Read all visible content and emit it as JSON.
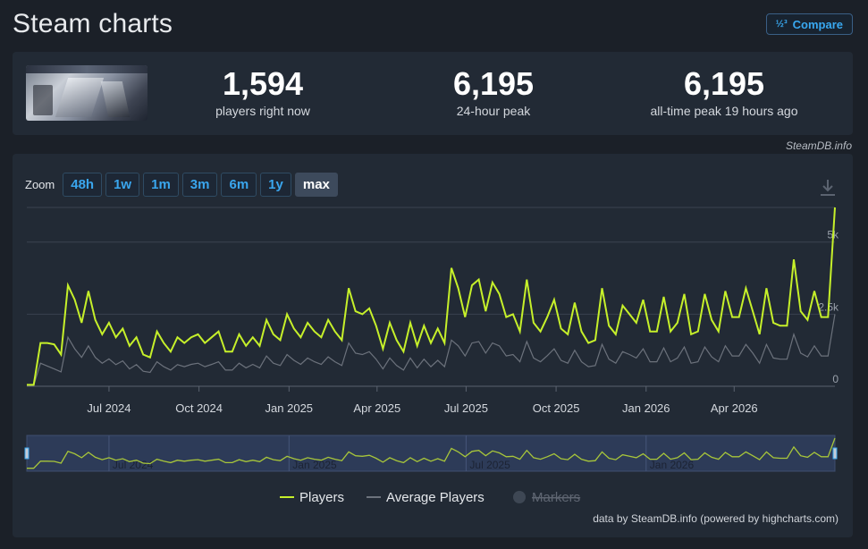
{
  "page": {
    "title": "Steam charts"
  },
  "compare": {
    "label": "Compare",
    "icon": "compare-icon",
    "icon_glyph": "½³"
  },
  "game": {
    "thumbnail": "game-thumbnail"
  },
  "stats": [
    {
      "value": "1,594",
      "label": "players right now"
    },
    {
      "value": "6,195",
      "label": "24-hour peak"
    },
    {
      "value": "6,195",
      "label": "all-time peak 19 hours ago"
    }
  ],
  "credit_top": "SteamDB.info",
  "zoom": {
    "label": "Zoom",
    "options": [
      "48h",
      "1w",
      "1m",
      "3m",
      "6m",
      "1y",
      "max"
    ],
    "active": "max"
  },
  "download": {
    "icon": "download-icon"
  },
  "credit_bottom": "data by SteamDB.info (powered by highcharts.com)",
  "colors": {
    "players": "#c6f02a",
    "average": "#6c727c",
    "background": "#1b2028",
    "panel": "#222a35",
    "accent": "#39a8f0"
  },
  "chart_data": {
    "type": "line",
    "x_start": "2024-04-08",
    "x_step_days": 7,
    "x_ticks": [
      "Jul 2024",
      "Oct 2024",
      "Jan 2025",
      "Apr 2025",
      "Jul 2025",
      "Oct 2025",
      "Jan 2026",
      "Apr 2026"
    ],
    "x_tick_dates": [
      "2024-07-01",
      "2024-10-01",
      "2025-01-01",
      "2025-04-01",
      "2025-07-01",
      "2025-10-01",
      "2026-01-01",
      "2026-04-01"
    ],
    "y_ticks": [
      "0",
      "2.5k",
      "5k"
    ],
    "y_tick_values": [
      0,
      2500,
      5000
    ],
    "ylim": [
      0,
      6200
    ],
    "grid": true,
    "legend": {
      "position": "bottom-center"
    },
    "series": [
      {
        "name": "Players",
        "color": "#c6f02a",
        "values": [
          50,
          50,
          1500,
          1500,
          1450,
          1100,
          3500,
          3000,
          2200,
          3300,
          2300,
          1800,
          2200,
          1700,
          2000,
          1400,
          1700,
          1100,
          1000,
          1900,
          1500,
          1200,
          1700,
          1500,
          1700,
          1800,
          1500,
          1700,
          1900,
          1200,
          1200,
          1800,
          1400,
          1700,
          1400,
          2300,
          1800,
          1600,
          2500,
          2000,
          1700,
          2200,
          1900,
          1700,
          2300,
          1900,
          1600,
          3400,
          2600,
          2500,
          2700,
          2100,
          1300,
          2200,
          1600,
          1200,
          2200,
          1400,
          2100,
          1500,
          2000,
          1500,
          4100,
          3400,
          2400,
          3500,
          3700,
          2600,
          3600,
          3200,
          2400,
          2500,
          1900,
          3700,
          2200,
          1900,
          2400,
          3000,
          2000,
          1800,
          2900,
          1900,
          1500,
          1600,
          3400,
          2100,
          1800,
          2800,
          2500,
          2200,
          3000,
          1900,
          1900,
          3100,
          1900,
          2200,
          3200,
          1800,
          1900,
          3200,
          2300,
          1900,
          3300,
          2400,
          2400,
          3400,
          2600,
          1800,
          3400,
          2200,
          2100,
          2100,
          4400,
          2600,
          2300,
          3300,
          2400,
          2400,
          6200
        ]
      },
      {
        "name": "Average Players",
        "color": "#6c727c",
        "values": [
          30,
          30,
          800,
          700,
          600,
          500,
          1700,
          1300,
          1000,
          1400,
          1000,
          800,
          950,
          750,
          880,
          600,
          750,
          520,
          480,
          850,
          680,
          560,
          750,
          680,
          760,
          800,
          680,
          760,
          850,
          560,
          560,
          800,
          640,
          760,
          640,
          1050,
          800,
          720,
          1100,
          900,
          760,
          980,
          850,
          760,
          1020,
          850,
          720,
          1500,
          1150,
          1100,
          1200,
          940,
          600,
          980,
          720,
          560,
          980,
          640,
          940,
          680,
          900,
          680,
          1600,
          1400,
          1050,
          1500,
          1550,
          1150,
          1500,
          1400,
          1050,
          1100,
          850,
          1550,
          980,
          850,
          1060,
          1300,
          900,
          800,
          1250,
          850,
          680,
          720,
          1450,
          940,
          800,
          1200,
          1100,
          980,
          1300,
          850,
          850,
          1330,
          850,
          980,
          1360,
          800,
          850,
          1360,
          1020,
          850,
          1400,
          1050,
          1050,
          1450,
          1150,
          800,
          1450,
          980,
          940,
          940,
          1800,
          1150,
          1020,
          1400,
          1050,
          1050,
          2500
        ]
      }
    ],
    "legend_items": [
      {
        "name": "Players",
        "enabled": true
      },
      {
        "name": "Average Players",
        "enabled": true
      },
      {
        "name": "Markers",
        "enabled": false
      }
    ],
    "navigator": {
      "x_ticks": [
        "Jul 2024",
        "Jan 2025",
        "Jul 2025",
        "Jan 2026"
      ],
      "x_tick_dates": [
        "2024-07-01",
        "2025-01-01",
        "2025-07-01",
        "2026-01-01"
      ]
    }
  }
}
